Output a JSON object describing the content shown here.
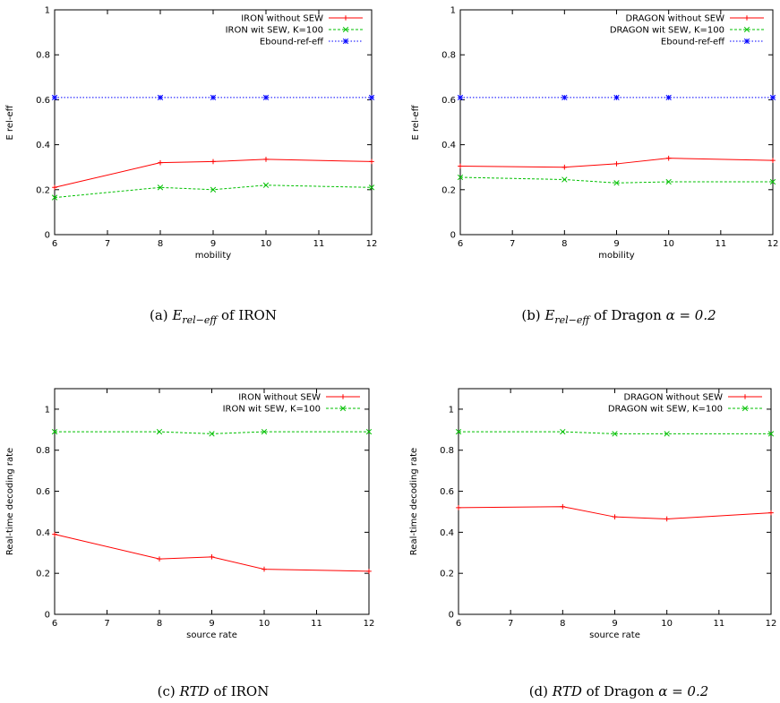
{
  "chart_data": [
    {
      "type": "line",
      "xlabel": "mobility",
      "ylabel": "E rel-eff",
      "xlim": [
        6,
        12
      ],
      "ylim": [
        0,
        1
      ],
      "xticks": [
        "6",
        "7",
        "8",
        "9",
        "10",
        "11",
        "12"
      ],
      "yticks": [
        "0",
        "0.2",
        "0.4",
        "0.6",
        "0.8",
        "1"
      ],
      "legend_position": "top-right",
      "grid": false,
      "caption": {
        "label": "(a)",
        "symbol": "E",
        "sub": "rel−eff",
        "text": "of IRON",
        "extra": ""
      },
      "series": [
        {
          "name": "IRON without SEW",
          "color": "#ff0000",
          "marker": "plus",
          "dash": "solid",
          "x": [
            6,
            8,
            9,
            10,
            12
          ],
          "values": [
            0.21,
            0.32,
            0.325,
            0.335,
            0.325
          ]
        },
        {
          "name": "IRON wit SEW, K=100",
          "color": "#00c000",
          "marker": "x",
          "dash": "dashed",
          "x": [
            6,
            8,
            9,
            10,
            12
          ],
          "values": [
            0.165,
            0.21,
            0.2,
            0.22,
            0.21
          ]
        },
        {
          "name": "Ebound-ref-eff",
          "color": "#0000ff",
          "marker": "star",
          "dash": "dotted",
          "x": [
            6,
            8,
            9,
            10,
            12
          ],
          "values": [
            0.61,
            0.61,
            0.61,
            0.61,
            0.61
          ]
        }
      ]
    },
    {
      "type": "line",
      "xlabel": "mobility",
      "ylabel": "E rel-eff",
      "xlim": [
        6,
        12
      ],
      "ylim": [
        0,
        1
      ],
      "xticks": [
        "6",
        "7",
        "8",
        "9",
        "10",
        "11",
        "12"
      ],
      "yticks": [
        "0",
        "0.2",
        "0.4",
        "0.6",
        "0.8",
        "1"
      ],
      "legend_position": "top-right",
      "grid": false,
      "caption": {
        "label": "(b)",
        "symbol": "E",
        "sub": "rel−eff",
        "text": "of Dragon",
        "extra": "α = 0.2"
      },
      "series": [
        {
          "name": "DRAGON without SEW",
          "color": "#ff0000",
          "marker": "plus",
          "dash": "solid",
          "x": [
            6,
            8,
            9,
            10,
            12
          ],
          "values": [
            0.305,
            0.3,
            0.315,
            0.34,
            0.33
          ]
        },
        {
          "name": "DRAGON wit SEW, K=100",
          "color": "#00c000",
          "marker": "x",
          "dash": "dashed",
          "x": [
            6,
            8,
            9,
            10,
            12
          ],
          "values": [
            0.255,
            0.245,
            0.23,
            0.235,
            0.235
          ]
        },
        {
          "name": "Ebound-ref-eff",
          "color": "#0000ff",
          "marker": "star",
          "dash": "dotted",
          "x": [
            6,
            8,
            9,
            10,
            12
          ],
          "values": [
            0.61,
            0.61,
            0.61,
            0.61,
            0.61
          ]
        }
      ]
    },
    {
      "type": "line",
      "xlabel": "source rate",
      "ylabel": "Real-time decoding rate",
      "xlim": [
        6,
        12
      ],
      "ylim": [
        0,
        1.1
      ],
      "xticks": [
        "6",
        "7",
        "8",
        "9",
        "10",
        "11",
        "12"
      ],
      "yticks": [
        "0",
        "0.2",
        "0.4",
        "0.6",
        "0.8",
        "1"
      ],
      "legend_position": "top-right",
      "grid": false,
      "caption": {
        "label": "(c)",
        "symbol": "RTD",
        "sub": "",
        "text": "of IRON",
        "extra": ""
      },
      "series": [
        {
          "name": "IRON without SEW",
          "color": "#ff0000",
          "marker": "plus",
          "dash": "solid",
          "x": [
            6,
            8,
            9,
            10,
            12
          ],
          "values": [
            0.39,
            0.27,
            0.28,
            0.22,
            0.21
          ]
        },
        {
          "name": "IRON wit SEW, K=100",
          "color": "#00c000",
          "marker": "x",
          "dash": "dashed",
          "x": [
            6,
            8,
            9,
            10,
            12
          ],
          "values": [
            0.89,
            0.89,
            0.88,
            0.89,
            0.89
          ]
        }
      ]
    },
    {
      "type": "line",
      "xlabel": "source rate",
      "ylabel": "Real-time decoding rate",
      "xlim": [
        6,
        12
      ],
      "ylim": [
        0,
        1.1
      ],
      "xticks": [
        "6",
        "7",
        "8",
        "9",
        "10",
        "11",
        "12"
      ],
      "yticks": [
        "0",
        "0.2",
        "0.4",
        "0.6",
        "0.8",
        "1"
      ],
      "legend_position": "top-right",
      "grid": false,
      "caption": {
        "label": "(d)",
        "symbol": "RTD",
        "sub": "",
        "text": "of Dragon",
        "extra": "α = 0.2"
      },
      "series": [
        {
          "name": "DRAGON without SEW",
          "color": "#ff0000",
          "marker": "plus",
          "dash": "solid",
          "x": [
            6,
            8,
            9,
            10,
            12
          ],
          "values": [
            0.52,
            0.525,
            0.475,
            0.465,
            0.495
          ]
        },
        {
          "name": "DRAGON wit SEW, K=100",
          "color": "#00c000",
          "marker": "x",
          "dash": "dashed",
          "x": [
            6,
            8,
            9,
            10,
            12
          ],
          "values": [
            0.89,
            0.89,
            0.88,
            0.88,
            0.88
          ]
        }
      ]
    }
  ]
}
